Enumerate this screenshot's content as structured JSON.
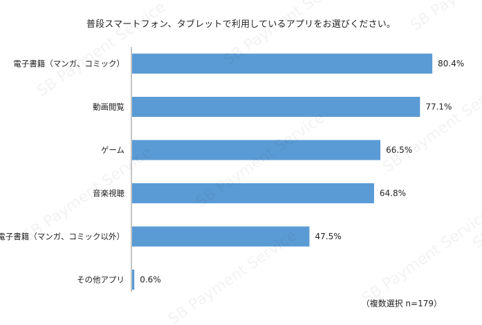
{
  "chart_data": {
    "type": "bar",
    "orientation": "horizontal",
    "title": "普段スマートフォン、タブレットで利用しているアプリをお選びください。",
    "note": "（複数選択 n=179）",
    "categories": [
      "電子書籍（マンガ、コミック）",
      "動画閲覧",
      "ゲーム",
      "音楽視聴",
      "電子書籍（マンガ、コミック以外）",
      "その他アプリ"
    ],
    "values": [
      80.4,
      77.1,
      66.5,
      64.8,
      47.5,
      0.6
    ],
    "value_labels": [
      "80.4%",
      "77.1%",
      "66.5%",
      "64.8%",
      "47.5%",
      "0.6%"
    ],
    "unit": "%",
    "xlim": [
      0,
      100
    ],
    "grid": false,
    "legend": "none",
    "bar_color": "#5b9bd5",
    "watermark": "SB Payment Service"
  }
}
